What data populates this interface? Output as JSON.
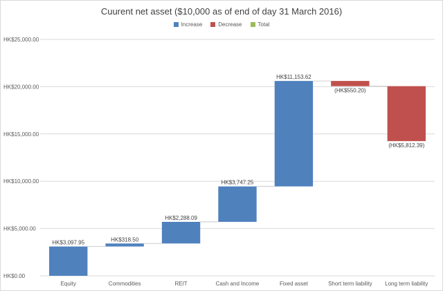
{
  "chart_data": {
    "type": "waterfall",
    "title": "Cuurent net asset  ($10,000 as of end of day 31 March 2016)",
    "legend": [
      {
        "name": "Increase",
        "color": "#4f81bd"
      },
      {
        "name": "Decrease",
        "color": "#c0504d"
      },
      {
        "name": "Total",
        "color": "#9bbb59"
      }
    ],
    "legend_position": "top",
    "categories": [
      "Equity",
      "Commodities",
      "REIT",
      "Cash and Income",
      "Fixed asset",
      "Short term liability",
      "Long term liability"
    ],
    "values": [
      3097.95,
      318.5,
      2288.09,
      3747.25,
      11153.62,
      -550.2,
      -5812.39
    ],
    "data_labels": [
      "HK$3,097.95",
      "HK$318.50",
      "HK$2,288.09",
      "HK$3,747.25",
      "HK$11,153.62",
      "(HK$550.20)",
      "(HK$5,812.39)"
    ],
    "ylim": [
      0,
      25000
    ],
    "yticks": [
      0,
      5000,
      10000,
      15000,
      20000,
      25000
    ],
    "ytick_labels": [
      "HK$0.00",
      "HK$5,000.00",
      "HK$10,000.00",
      "HK$15,000.00",
      "HK$20,000.00",
      "HK$25,000.00"
    ],
    "grid": true,
    "xlabel": "",
    "ylabel": ""
  }
}
